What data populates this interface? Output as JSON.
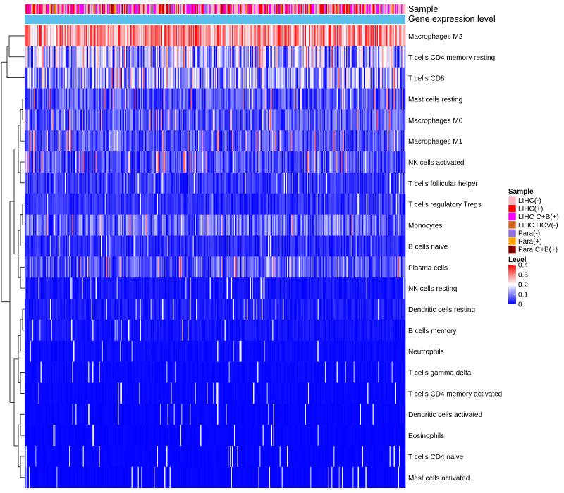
{
  "chart_data": {
    "type": "heatmap",
    "title": "",
    "annotation_tracks": [
      "Sample",
      "Gene expression level"
    ],
    "rows": [
      {
        "label": "Macrophages M2",
        "mean": 0.27
      },
      {
        "label": "T cells CD4 memory resting",
        "mean": 0.14
      },
      {
        "label": "T cells CD8",
        "mean": 0.13
      },
      {
        "label": "Mast cells resting",
        "mean": 0.07
      },
      {
        "label": "Macrophages M0",
        "mean": 0.08
      },
      {
        "label": "Macrophages M1",
        "mean": 0.065
      },
      {
        "label": "NK cells activated",
        "mean": 0.065
      },
      {
        "label": "T cells follicular helper",
        "mean": 0.05
      },
      {
        "label": "T cells regulatory  Tregs",
        "mean": 0.045
      },
      {
        "label": "Monocytes",
        "mean": 0.085
      },
      {
        "label": "B cells naive",
        "mean": 0.04
      },
      {
        "label": "Plasma cells",
        "mean": 0.07
      },
      {
        "label": "NK cells resting",
        "mean": 0.02
      },
      {
        "label": "Dendritic cells resting",
        "mean": 0.025
      },
      {
        "label": "B cells memory",
        "mean": 0.018
      },
      {
        "label": "Neutrophils",
        "mean": 0.01
      },
      {
        "label": "T cells gamma delta",
        "mean": 0.008
      },
      {
        "label": "T cells CD4 memory activated",
        "mean": 0.006
      },
      {
        "label": "Dendritic cells activated",
        "mean": 0.005
      },
      {
        "label": "Eosinophils",
        "mean": 0.004
      },
      {
        "label": "T cells CD4 naive",
        "mean": 0.004
      },
      {
        "label": "Mast cells activated",
        "mean": 0.004
      }
    ],
    "color_scale": {
      "range": [
        0,
        0.4
      ],
      "stops": [
        {
          "value": 0,
          "color": "#0000FF"
        },
        {
          "value": 0.2,
          "color": "#FFFFFF"
        },
        {
          "value": 0.4,
          "color": "#FF0000"
        }
      ]
    },
    "legend_sample": {
      "title": "Sample",
      "entries": [
        {
          "label": "LIHC(-)",
          "color": "#FFB6C1"
        },
        {
          "label": "LIHC(+)",
          "color": "#FF0000"
        },
        {
          "label": "LIHC C+B(+)",
          "color": "#FF00FF"
        },
        {
          "label": "LIHC HCV(-)",
          "color": "#D2691E"
        },
        {
          "label": "Para(-)",
          "color": "#9370DB"
        },
        {
          "label": "Para(+)",
          "color": "#FFA500"
        },
        {
          "label": "Para C+B(+)",
          "color": "#8B0000"
        }
      ]
    },
    "legend_level": {
      "title": "Level",
      "ticks": [
        "0.4",
        "0.3",
        "0.2",
        "0.1",
        "0"
      ]
    },
    "gene_expression_bar_color": "#5BC0EB",
    "legend_placement": "right"
  }
}
